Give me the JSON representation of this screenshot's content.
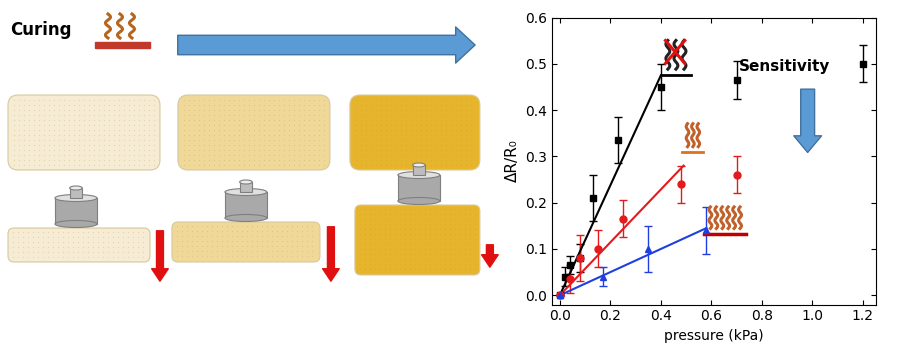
{
  "diagram": {
    "title": "Curing"
  },
  "chart_data": {
    "type": "scatter",
    "x_label": "pressure (kPa)",
    "y_label": "ΔR/R₀",
    "annotation": "Sensitivity",
    "xlim": [
      -0.03,
      1.25
    ],
    "ylim": [
      -0.02,
      0.6
    ],
    "xticks": [
      0.0,
      0.2,
      0.4,
      0.6,
      0.8,
      1.0,
      1.2
    ],
    "yticks": [
      0.0,
      0.1,
      0.2,
      0.3,
      0.4,
      0.5,
      0.6
    ],
    "grid": false,
    "series": [
      {
        "type": "scatter",
        "color": "#000000",
        "marker": "square",
        "x": [
          0,
          0.02,
          0.04,
          0.08,
          0.13,
          0.23,
          0.4,
          0.7,
          1.2
        ],
        "values": [
          0,
          0.04,
          0.065,
          0.08,
          0.21,
          0.335,
          0.45,
          0.465,
          0.5
        ],
        "errors": [
          0,
          0.02,
          0.02,
          0.03,
          0.05,
          0.05,
          0.05,
          0.04,
          0.04
        ]
      },
      {
        "type": "scatter",
        "color": "#e41a1c",
        "marker": "circle",
        "x": [
          0,
          0.04,
          0.08,
          0.15,
          0.25,
          0.48,
          0.7
        ],
        "values": [
          0,
          0.035,
          0.08,
          0.1,
          0.165,
          0.24,
          0.26
        ],
        "errors": [
          0,
          0.03,
          0.05,
          0.04,
          0.04,
          0.04,
          0.04
        ]
      },
      {
        "type": "scatter",
        "color": "#1f3fe0",
        "marker": "triangle",
        "x": [
          0,
          0.17,
          0.35,
          0.58
        ],
        "values": [
          0,
          0.04,
          0.1,
          0.14
        ],
        "errors": [
          0,
          0.02,
          0.05,
          0.05
        ]
      },
      {
        "type": "line",
        "color": "#000000",
        "line_style": "solid",
        "x": [
          0,
          0.4
        ],
        "values": [
          0,
          0.475
        ]
      },
      {
        "type": "line",
        "color": "#e41a1c",
        "line_style": "solid",
        "x": [
          0,
          0.49
        ],
        "values": [
          0,
          0.28
        ]
      },
      {
        "type": "line",
        "color": "#1f3fe0",
        "line_style": "solid",
        "x": [
          0,
          0.58
        ],
        "values": [
          0,
          0.145
        ]
      }
    ]
  }
}
